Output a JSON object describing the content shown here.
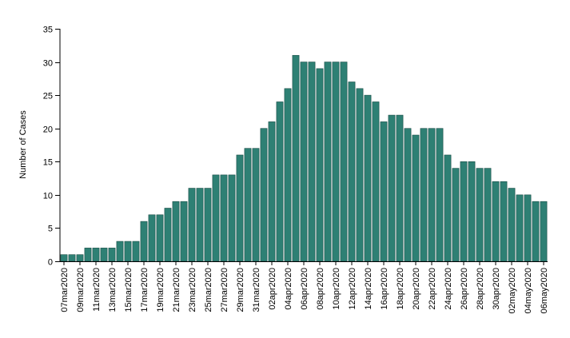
{
  "chart_data": {
    "type": "bar",
    "title": "",
    "xlabel": "",
    "ylabel": "Number of Cases",
    "ylim": [
      0,
      35
    ],
    "yticks": [
      0,
      5,
      10,
      15,
      20,
      25,
      30,
      35
    ],
    "grid": false,
    "bar_color": "#2e8074",
    "bar_stroke": "#1a4d46",
    "categories": [
      "07mar2020",
      "08mar2020",
      "09mar2020",
      "10mar2020",
      "11mar2020",
      "12mar2020",
      "13mar2020",
      "14mar2020",
      "15mar2020",
      "16mar2020",
      "17mar2020",
      "18mar2020",
      "19mar2020",
      "20mar2020",
      "21mar2020",
      "22mar2020",
      "23mar2020",
      "24mar2020",
      "25mar2020",
      "26mar2020",
      "27mar2020",
      "28mar2020",
      "29mar2020",
      "30mar2020",
      "31mar2020",
      "01apr2020",
      "02apr2020",
      "03apr2020",
      "04apr2020",
      "05apr2020",
      "06apr2020",
      "07apr2020",
      "08apr2020",
      "09apr2020",
      "10apr2020",
      "11apr2020",
      "12apr2020",
      "13apr2020",
      "14apr2020",
      "15apr2020",
      "16apr2020",
      "17apr2020",
      "18apr2020",
      "19apr2020",
      "20apr2020",
      "21apr2020",
      "22apr2020",
      "23apr2020",
      "24apr2020",
      "25apr2020",
      "26apr2020",
      "27apr2020",
      "28apr2020",
      "29apr2020",
      "30apr2020",
      "01may2020",
      "02may2020",
      "03may2020",
      "04may2020",
      "05may2020",
      "06may2020"
    ],
    "values": [
      1,
      1,
      1,
      2,
      2,
      2,
      2,
      3,
      3,
      3,
      6,
      7,
      7,
      8,
      9,
      9,
      11,
      11,
      11,
      13,
      13,
      13,
      16,
      17,
      17,
      20,
      21,
      24,
      26,
      31,
      30,
      30,
      29,
      30,
      30,
      30,
      27,
      26,
      25,
      24,
      21,
      22,
      22,
      20,
      19,
      20,
      20,
      20,
      16,
      14,
      15,
      15,
      14,
      14,
      12,
      12,
      11,
      10,
      10,
      9,
      9
    ],
    "x_label_every": 2
  }
}
